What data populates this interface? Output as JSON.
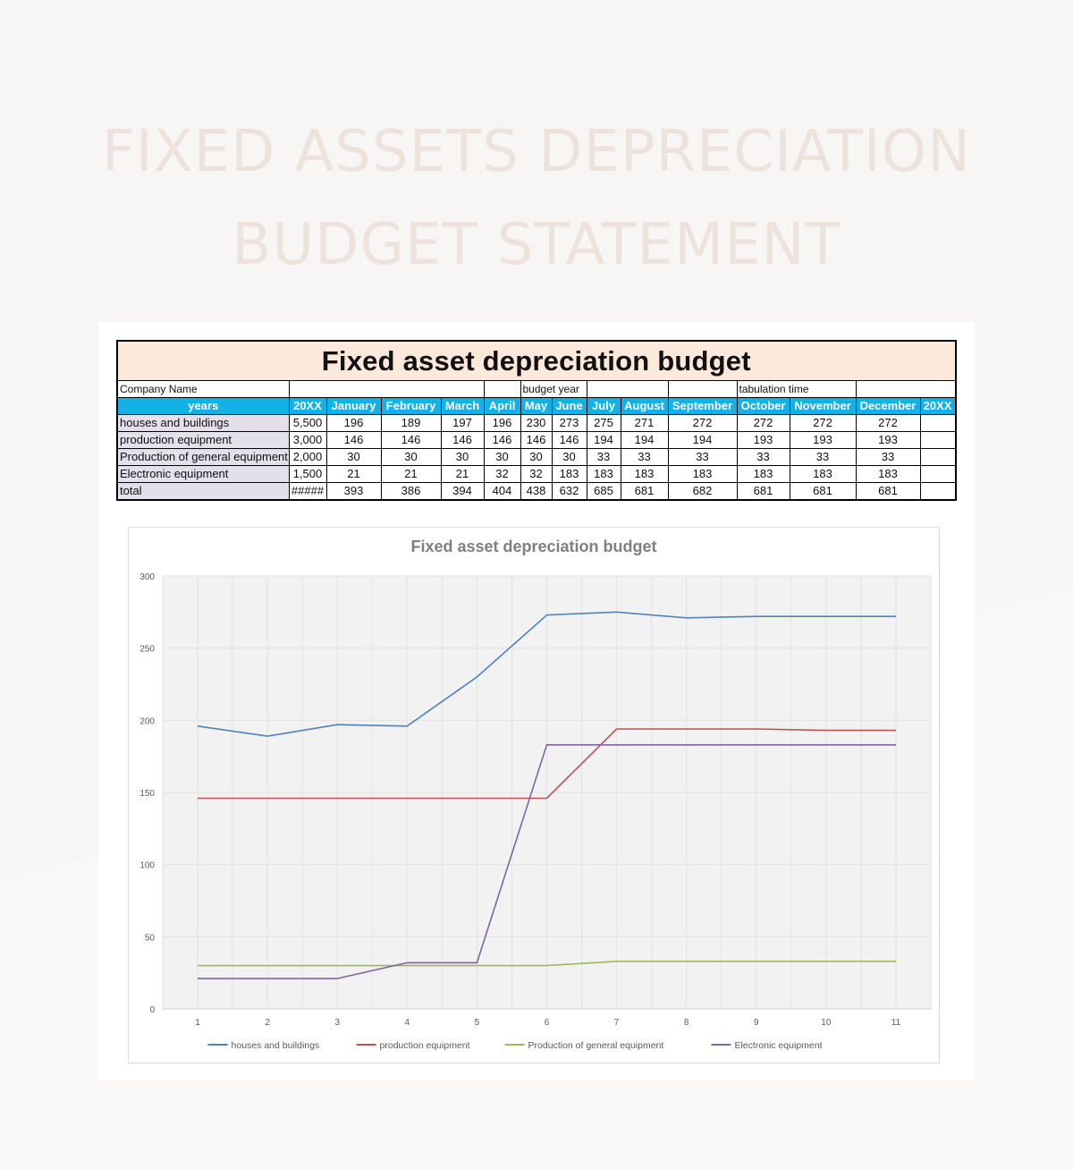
{
  "page": {
    "banner_line1": "FIXED ASSETS DEPRECIATION",
    "banner_line2": "BUDGET STATEMENT"
  },
  "sheet": {
    "title": "Fixed asset depreciation budget",
    "info": {
      "company_label": "Company Name",
      "budget_year_label": "budget year",
      "tabulation_label": "tabulation time"
    },
    "header": [
      "years",
      "20XX",
      "January",
      "February",
      "March",
      "April",
      "May",
      "June",
      "July",
      "August",
      "September",
      "October",
      "November",
      "December",
      "20XX"
    ],
    "rows": [
      {
        "label": "houses and buildings",
        "cells": [
          "5,500",
          "196",
          "189",
          "197",
          "196",
          "230",
          "273",
          "275",
          "271",
          "272",
          "272",
          "272",
          "272",
          ""
        ]
      },
      {
        "label": "production equipment",
        "cells": [
          "3,000",
          "146",
          "146",
          "146",
          "146",
          "146",
          "146",
          "194",
          "194",
          "194",
          "193",
          "193",
          "193",
          ""
        ]
      },
      {
        "label": "Production of general equipment",
        "cells": [
          "2,000",
          "30",
          "30",
          "30",
          "30",
          "30",
          "30",
          "33",
          "33",
          "33",
          "33",
          "33",
          "33",
          ""
        ]
      },
      {
        "label": "Electronic equipment",
        "cells": [
          "1,500",
          "21",
          "21",
          "21",
          "32",
          "32",
          "183",
          "183",
          "183",
          "183",
          "183",
          "183",
          "183",
          ""
        ]
      },
      {
        "label": "total",
        "cells": [
          "#####",
          "393",
          "386",
          "394",
          "404",
          "438",
          "632",
          "685",
          "681",
          "682",
          "681",
          "681",
          "681",
          ""
        ]
      }
    ]
  },
  "colors": {
    "header_blue": "#14b0e8",
    "title_peach": "#fde9dc",
    "label_lavender": "#e3dfeb"
  },
  "chart_data": {
    "type": "line",
    "title": "Fixed asset depreciation budget",
    "x": [
      1,
      2,
      3,
      4,
      5,
      6,
      7,
      8,
      9,
      10,
      11
    ],
    "ylim": [
      0,
      300
    ],
    "yticks": [
      0,
      50,
      100,
      150,
      200,
      250,
      300
    ],
    "grid": true,
    "legend": "bottom",
    "series": [
      {
        "name": "houses and buildings",
        "color": "#4f81bd",
        "values": [
          196,
          189,
          197,
          196,
          230,
          273,
          275,
          271,
          272,
          272,
          272
        ]
      },
      {
        "name": "production equipment",
        "color": "#c0504d",
        "values": [
          146,
          146,
          146,
          146,
          146,
          146,
          194,
          194,
          194,
          193,
          193
        ]
      },
      {
        "name": "Production of general equipment",
        "color": "#9bbb59",
        "values": [
          30,
          30,
          30,
          30,
          30,
          30,
          33,
          33,
          33,
          33,
          33
        ]
      },
      {
        "name": "Electronic equipment",
        "color": "#8064a2",
        "values": [
          21,
          21,
          21,
          32,
          32,
          183,
          183,
          183,
          183,
          183,
          183
        ]
      }
    ]
  }
}
